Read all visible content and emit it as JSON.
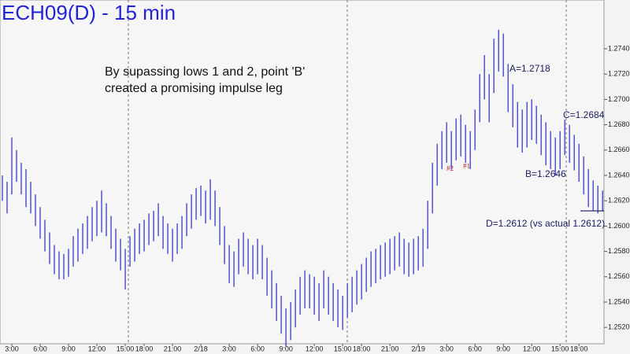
{
  "chart_data": {
    "type": "ohlc",
    "title": "ECH09(D) - 15 min",
    "note_lines": [
      "By supassing lows 1 and 2, point 'B'",
      "created a promising impulse leg"
    ],
    "labels": {
      "a": "A=1.2718",
      "b": "B=1.2646",
      "c": "C=1.2684",
      "d": "D=1.2612 (vs actual 1.2612)",
      "low2": "#2",
      "low1": "#1"
    },
    "target_level": 1.2612,
    "color": "#3a3ac8",
    "high": [
      1.264,
      1.2635,
      1.267,
      1.266,
      1.265,
      1.2645,
      1.2635,
      1.2625,
      1.2615,
      1.2605,
      1.2595,
      1.2585,
      1.258,
      1.2578,
      1.2582,
      1.2592,
      1.2598,
      1.2602,
      1.2608,
      1.2615,
      1.262,
      1.2628,
      1.2618,
      1.2608,
      1.2598,
      1.259,
      1.2582,
      1.2592,
      1.2598,
      1.2602,
      1.2605,
      1.261,
      1.2612,
      1.2618,
      1.2608,
      1.2602,
      1.2598,
      1.2602,
      1.2608,
      1.2618,
      1.2625,
      1.263,
      1.2632,
      1.2628,
      1.2637,
      1.2628,
      1.2615,
      1.26,
      1.2585,
      1.258,
      1.259,
      1.2595,
      1.259,
      1.2585,
      1.259,
      1.2585,
      1.2575,
      1.2565,
      1.2555,
      1.2545,
      1.2535,
      1.254,
      1.255,
      1.256,
      1.2565,
      1.2562,
      1.256,
      1.2555,
      1.2565,
      1.256,
      1.2555,
      1.255,
      1.2545,
      1.2555,
      1.256,
      1.2565,
      1.257,
      1.2575,
      1.258,
      1.2582,
      1.2585,
      1.2587,
      1.259,
      1.2592,
      1.2595,
      1.259,
      1.2587,
      1.259,
      1.2592,
      1.2598,
      1.262,
      1.265,
      1.2665,
      1.2675,
      1.2682,
      1.2675,
      1.2685,
      1.2688,
      1.268,
      1.2675,
      1.2692,
      1.272,
      1.2735,
      1.272,
      1.2748,
      1.2755,
      1.2752,
      1.2728,
      1.2712,
      1.2698,
      1.2692,
      1.2698,
      1.27,
      1.2695,
      1.2688,
      1.2682,
      1.2675,
      1.267,
      1.2675,
      1.2684,
      1.268,
      1.2672,
      1.2665,
      1.2655,
      1.2645,
      1.2636,
      1.2632,
      1.2628
    ],
    "low": [
      1.262,
      1.261,
      1.2625,
      1.2635,
      1.2625,
      1.2615,
      1.261,
      1.26,
      1.259,
      1.258,
      1.257,
      1.2562,
      1.2558,
      1.2558,
      1.256,
      1.2568,
      1.2572,
      1.2578,
      1.2582,
      1.2588,
      1.2592,
      1.2595,
      1.2592,
      1.2582,
      1.2572,
      1.2565,
      1.255,
      1.2568,
      1.2572,
      1.2578,
      1.258,
      1.2585,
      1.2588,
      1.2592,
      1.2582,
      1.2578,
      1.2572,
      1.2578,
      1.2582,
      1.2592,
      1.2598,
      1.2605,
      1.2608,
      1.2602,
      1.2605,
      1.26,
      1.2585,
      1.257,
      1.2555,
      1.2552,
      1.2562,
      1.2568,
      1.2562,
      1.2558,
      1.2562,
      1.2558,
      1.2545,
      1.2535,
      1.2525,
      1.2515,
      1.2505,
      1.251,
      1.252,
      1.253,
      1.2535,
      1.2535,
      1.253,
      1.2525,
      1.2535,
      1.253,
      1.2525,
      1.252,
      1.2518,
      1.2528,
      1.2532,
      1.2538,
      1.2542,
      1.2548,
      1.2552,
      1.2555,
      1.2558,
      1.256,
      1.2562,
      1.2565,
      1.2568,
      1.2562,
      1.256,
      1.2562,
      1.2565,
      1.2568,
      1.2582,
      1.261,
      1.2632,
      1.2645,
      1.265,
      1.2645,
      1.2652,
      1.2655,
      1.265,
      1.2645,
      1.266,
      1.2682,
      1.27,
      1.2682,
      1.2705,
      1.2722,
      1.2718,
      1.269,
      1.2678,
      1.2662,
      1.2658,
      1.2662,
      1.2668,
      1.2665,
      1.2656,
      1.2648,
      1.2645,
      1.264,
      1.2645,
      1.2656,
      1.265,
      1.2644,
      1.2635,
      1.2625,
      1.2615,
      1.2612,
      1.261,
      1.2612
    ],
    "xlim": [
      -0.5,
      127.8
    ],
    "xticks": [
      {
        "value": 2,
        "label": "3:00"
      },
      {
        "value": 8,
        "label": "6:00"
      },
      {
        "value": 14,
        "label": "9:00"
      },
      {
        "value": 20,
        "label": "12:00"
      },
      {
        "value": 26,
        "label": "15:00"
      },
      {
        "value": 30,
        "label": "18:00"
      },
      {
        "value": 36,
        "label": "21:00"
      },
      {
        "value": 42,
        "label": "2/18"
      },
      {
        "value": 48,
        "label": "3:00"
      },
      {
        "value": 54,
        "label": "6:00"
      },
      {
        "value": 60,
        "label": "9:00"
      },
      {
        "value": 66,
        "label": "12:00"
      },
      {
        "value": 72,
        "label": "15:00"
      },
      {
        "value": 76,
        "label": "18:00"
      },
      {
        "value": 82,
        "label": "21:00"
      },
      {
        "value": 88,
        "label": "2/19"
      },
      {
        "value": 94,
        "label": "3:00"
      },
      {
        "value": 100,
        "label": "6:00"
      },
      {
        "value": 106,
        "label": "9:00"
      },
      {
        "value": 112,
        "label": "12:00"
      },
      {
        "value": 118,
        "label": "15:00"
      },
      {
        "value": 122,
        "label": "18:00"
      }
    ],
    "ylim": [
      1.2499,
      1.27785
    ],
    "yticks": [
      {
        "value": 1.252,
        "label": "1.2520"
      },
      {
        "value": 1.254,
        "label": "1.2540"
      },
      {
        "value": 1.256,
        "label": "1.2560"
      },
      {
        "value": 1.258,
        "label": "1.2580"
      },
      {
        "value": 1.26,
        "label": "1.2600"
      },
      {
        "value": 1.262,
        "label": "1.2620"
      },
      {
        "value": 1.264,
        "label": "1.2640"
      },
      {
        "value": 1.266,
        "label": "1.2660"
      },
      {
        "value": 1.268,
        "label": "1.2680"
      },
      {
        "value": 1.27,
        "label": "1.2700"
      },
      {
        "value": 1.272,
        "label": "1.2720"
      },
      {
        "value": 1.274,
        "label": "1.2740"
      }
    ]
  }
}
